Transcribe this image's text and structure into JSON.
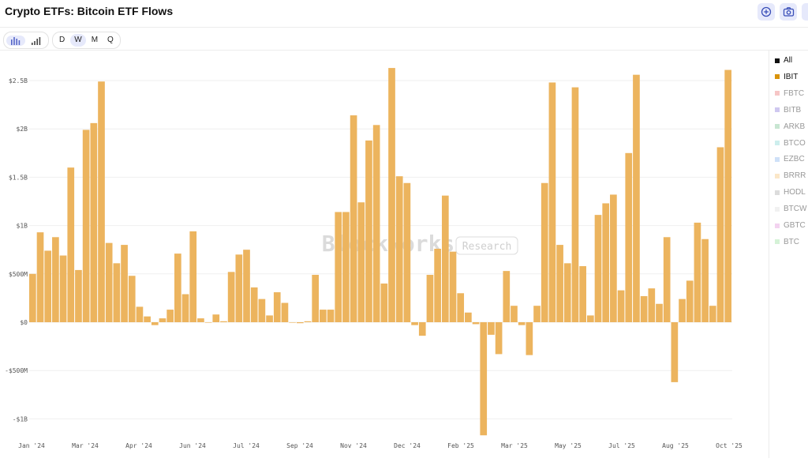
{
  "header": {
    "title": "Crypto ETFs: Bitcoin ETF Flows"
  },
  "toolbar": {
    "chart_modes": [
      "bar-chart",
      "bar-chart-alt"
    ],
    "intervals": [
      "D",
      "W",
      "M",
      "Q"
    ],
    "active_interval": "W"
  },
  "watermark": {
    "brand": "Blockworks",
    "tag": "Research"
  },
  "legend": [
    {
      "label": "All",
      "color": "#111111",
      "active": true
    },
    {
      "label": "IBIT",
      "color": "#d9930b",
      "active": true
    },
    {
      "label": "FBTC",
      "color": "#f6c6c6",
      "active": false
    },
    {
      "label": "BITB",
      "color": "#cfc8f0",
      "active": false
    },
    {
      "label": "ARKB",
      "color": "#c8e6d2",
      "active": false
    },
    {
      "label": "BTCO",
      "color": "#cdeeed",
      "active": false
    },
    {
      "label": "EZBC",
      "color": "#cfe1f8",
      "active": false
    },
    {
      "label": "BRRR",
      "color": "#fbe7c8",
      "active": false
    },
    {
      "label": "HODL",
      "color": "#dcdcdc",
      "active": false
    },
    {
      "label": "BTCW",
      "color": "#f1f1f1",
      "active": false
    },
    {
      "label": "GBTC",
      "color": "#f3d3f0",
      "active": false
    },
    {
      "label": "BTC",
      "color": "#d5f2d7",
      "active": false
    }
  ],
  "chart_data": {
    "type": "bar",
    "series": [
      {
        "name": "IBIT",
        "color": "#ecb45e",
        "values": [
          0.5,
          0.93,
          0.74,
          0.88,
          0.69,
          1.6,
          0.54,
          1.99,
          2.06,
          2.49,
          0.82,
          0.61,
          0.8,
          0.48,
          0.16,
          0.06,
          -0.03,
          0.04,
          0.13,
          0.71,
          0.29,
          0.94,
          0.04,
          0.0,
          0.08,
          0.01,
          0.52,
          0.7,
          0.75,
          0.36,
          0.24,
          0.07,
          0.31,
          0.2,
          0.0,
          -0.01,
          0.01,
          0.49,
          0.13,
          0.13,
          1.14,
          1.14,
          2.14,
          1.24,
          1.88,
          2.04,
          0.4,
          2.63,
          1.51,
          1.44,
          -0.03,
          -0.14,
          0.49,
          0.76,
          1.31,
          0.73,
          0.3,
          0.1,
          -0.02,
          -1.17,
          -0.13,
          -0.33,
          0.53,
          0.17,
          -0.03,
          -0.34,
          0.17,
          1.44,
          2.48,
          0.8,
          0.61,
          2.43,
          0.58,
          0.07,
          1.11,
          1.23,
          1.32,
          0.33,
          1.75,
          2.56,
          0.27,
          0.35,
          0.19,
          0.88,
          -0.62,
          0.24,
          0.43,
          1.03,
          0.86,
          0.17,
          1.81,
          2.61
        ]
      }
    ],
    "x_tick_labels": [
      "Jan '24",
      "Mar '24",
      "Apr '24",
      "Jun '24",
      "Jul '24",
      "Sep '24",
      "Nov '24",
      "Dec '24",
      "Feb '25",
      "Mar '25",
      "May '25",
      "Jul '25",
      "Aug '25",
      "Oct '25"
    ],
    "y_tick_values": [
      2.5,
      2,
      1.5,
      1,
      0.5,
      0,
      -0.5,
      -1
    ],
    "y_tick_labels": [
      "$2.5B",
      "$2B",
      "$1.5B",
      "$1B",
      "$500M",
      "$0",
      "-$500M",
      "-$1B"
    ],
    "ylim": [
      -1.17,
      2.63
    ],
    "unit": "USD billions",
    "grid": true,
    "legend_position": "right"
  }
}
